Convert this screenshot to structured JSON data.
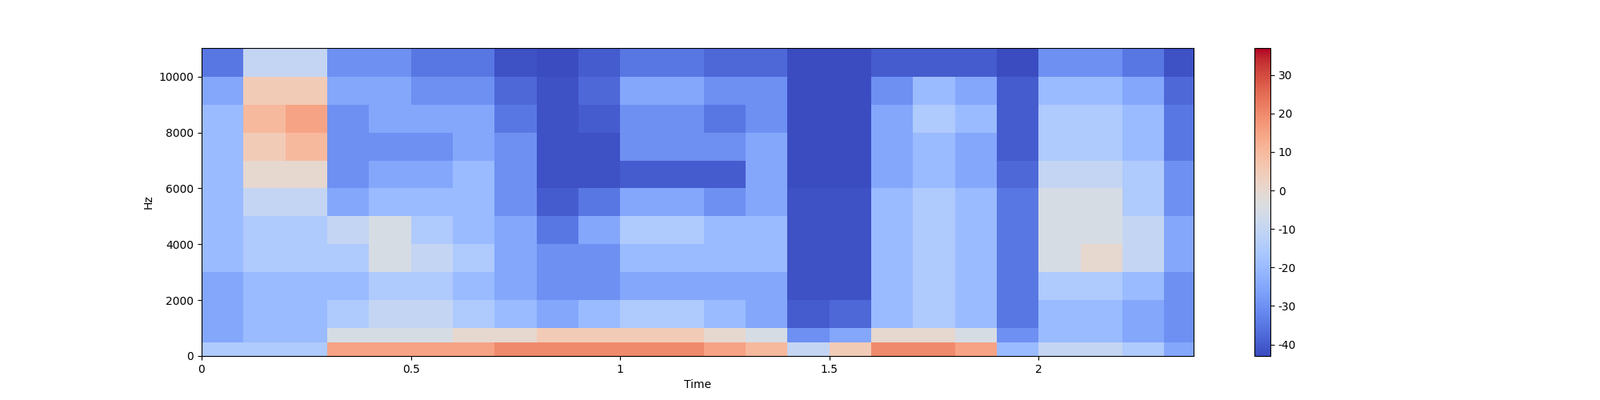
{
  "chart_data": {
    "type": "spectrogram",
    "x_label": "Time",
    "y_label": "Hz",
    "xlim": [
      0,
      2.37
    ],
    "ylim": [
      0,
      11025
    ],
    "xticks": [
      0,
      0.5,
      1,
      1.5,
      2
    ],
    "yticks": [
      0,
      2000,
      4000,
      6000,
      8000,
      10000
    ],
    "time_bins": [
      0,
      0.1,
      0.2,
      0.3,
      0.4,
      0.5,
      0.6,
      0.7,
      0.8,
      0.9,
      1.0,
      1.1,
      1.2,
      1.3,
      1.4,
      1.5,
      1.6,
      1.7,
      1.8,
      1.9,
      2.0,
      2.1,
      2.2,
      2.3,
      2.37
    ],
    "freq_bins": [
      0,
      500,
      1000,
      2000,
      3000,
      4000,
      5000,
      6000,
      7000,
      8000,
      9000,
      10000,
      11025
    ],
    "cells": [
      [
        -15,
        -25,
        -25,
        -25,
        -20,
        -20,
        -20,
        -20,
        -20,
        -20,
        -25,
        -35
      ],
      [
        -15,
        -20,
        -20,
        -20,
        -15,
        -15,
        -10,
        0,
        5,
        10,
        5,
        -10
      ],
      [
        -15,
        -20,
        -20,
        -20,
        -15,
        -15,
        -10,
        0,
        10,
        15,
        5,
        -10
      ],
      [
        15,
        -5,
        -15,
        -20,
        -15,
        -10,
        -25,
        -30,
        -30,
        -30,
        -25,
        -30
      ],
      [
        15,
        -5,
        -10,
        -15,
        -5,
        -5,
        -20,
        -25,
        -30,
        -25,
        -25,
        -30
      ],
      [
        15,
        -5,
        -10,
        -15,
        -10,
        -15,
        -20,
        -25,
        -30,
        -25,
        -30,
        -35
      ],
      [
        15,
        0,
        -15,
        -20,
        -15,
        -20,
        -20,
        -20,
        -25,
        -25,
        -30,
        -35
      ],
      [
        20,
        0,
        -20,
        -25,
        -25,
        -25,
        -30,
        -30,
        -30,
        -35,
        -38,
        -42
      ],
      [
        20,
        5,
        -25,
        -30,
        -30,
        -35,
        -40,
        -42,
        -42,
        -42,
        -42,
        -43
      ],
      [
        20,
        5,
        -20,
        -30,
        -30,
        -25,
        -35,
        -42,
        -42,
        -40,
        -38,
        -40
      ],
      [
        20,
        5,
        -15,
        -25,
        -20,
        -15,
        -25,
        -40,
        -30,
        -30,
        -25,
        -35
      ],
      [
        20,
        5,
        -15,
        -25,
        -20,
        -15,
        -25,
        -40,
        -30,
        -30,
        -25,
        -35
      ],
      [
        15,
        0,
        -20,
        -25,
        -20,
        -20,
        -30,
        -40,
        -30,
        -35,
        -30,
        -38
      ],
      [
        10,
        -5,
        -25,
        -25,
        -20,
        -20,
        -25,
        -25,
        -25,
        -30,
        -30,
        -38
      ],
      [
        -10,
        -30,
        -40,
        -42,
        -42,
        -42,
        -42,
        -43,
        -43,
        -43,
        -43,
        -43
      ],
      [
        5,
        -25,
        -38,
        -42,
        -42,
        -42,
        -42,
        -43,
        -43,
        -43,
        -43,
        -43
      ],
      [
        20,
        0,
        -20,
        -20,
        -20,
        -20,
        -20,
        -25,
        -25,
        -25,
        -30,
        -40
      ],
      [
        20,
        0,
        -15,
        -15,
        -15,
        -15,
        -15,
        -20,
        -20,
        -15,
        -20,
        -40
      ],
      [
        15,
        -5,
        -20,
        -20,
        -20,
        -20,
        -20,
        -25,
        -25,
        -20,
        -25,
        -40
      ],
      [
        -20,
        -30,
        -35,
        -35,
        -35,
        -35,
        -35,
        -38,
        -40,
        -40,
        -40,
        -43
      ],
      [
        -10,
        -20,
        -20,
        -15,
        -5,
        -5,
        -5,
        -10,
        -15,
        -15,
        -20,
        -30
      ],
      [
        -10,
        -20,
        -20,
        -15,
        0,
        -5,
        -5,
        -10,
        -15,
        -15,
        -20,
        -30
      ],
      [
        -15,
        -25,
        -25,
        -20,
        -10,
        -10,
        -15,
        -15,
        -20,
        -20,
        -25,
        -35
      ],
      [
        -25,
        -30,
        -30,
        -30,
        -25,
        -25,
        -30,
        -30,
        -35,
        -35,
        -38,
        -42
      ]
    ],
    "colorbar_range": [
      -43,
      37
    ],
    "colorbar_ticks": [
      -40,
      -30,
      -20,
      -10,
      0,
      10,
      20,
      30
    ]
  }
}
